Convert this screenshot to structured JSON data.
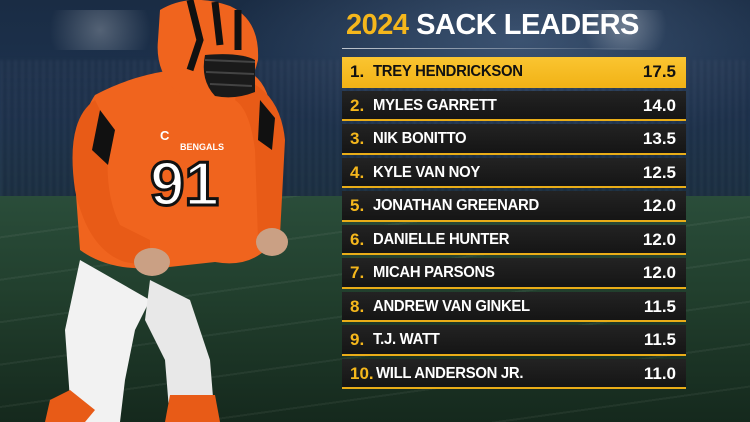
{
  "title": {
    "year": "2024",
    "text": "SACK LEADERS"
  },
  "player": {
    "number": "91",
    "brand": "BENGALS",
    "captain_patch": "C"
  },
  "leaders": [
    {
      "rank": "1.",
      "name": "TREY HENDRICKSON",
      "sacks": "17.5"
    },
    {
      "rank": "2.",
      "name": "MYLES GARRETT",
      "sacks": "14.0"
    },
    {
      "rank": "3.",
      "name": "NIK BONITTO",
      "sacks": "13.5"
    },
    {
      "rank": "4.",
      "name": "KYLE VAN NOY",
      "sacks": "12.5"
    },
    {
      "rank": "5.",
      "name": "JONATHAN GREENARD",
      "sacks": "12.0"
    },
    {
      "rank": "6.",
      "name": "DANIELLE HUNTER",
      "sacks": "12.0"
    },
    {
      "rank": "7.",
      "name": "MICAH PARSONS",
      "sacks": "12.0"
    },
    {
      "rank": "8.",
      "name": "ANDREW VAN GINKEL",
      "sacks": "11.5"
    },
    {
      "rank": "9.",
      "name": "T.J. WATT",
      "sacks": "11.5"
    },
    {
      "rank": "10.",
      "name": "WILL ANDERSON JR.",
      "sacks": "11.0"
    }
  ],
  "colors": {
    "accent": "#f5b71c",
    "row_bg": "#1c1c1c",
    "jersey": "#f0641e"
  }
}
